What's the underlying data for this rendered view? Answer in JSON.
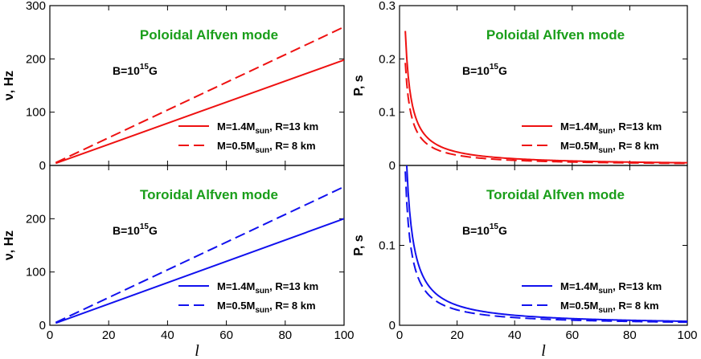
{
  "chart_data": [
    {
      "type": "line",
      "id": "poloidal-frequency",
      "title": "Poloidal Alfven mode",
      "annotation": {
        "text": "B=10",
        "sup": "15",
        "suffix": "G"
      },
      "xlabel": "l",
      "ylabel": "ν, Hz",
      "xlim": [
        0,
        100
      ],
      "ylim": [
        0,
        300
      ],
      "yticks": [
        0,
        100,
        200,
        300
      ],
      "xticks": [],
      "color": "#ee1111",
      "series": [
        {
          "name": "M=1.4M_sun, R=13 km",
          "legend": {
            "a": "M=1.4M",
            "sub": "sun",
            "b": ", R=13 km"
          },
          "dash": "solid",
          "x": [
            2,
            100
          ],
          "y": [
            3.96,
            198
          ]
        },
        {
          "name": "M=0.5M_sun, R=8 km",
          "legend": {
            "a": "M=0.5M",
            "sub": "sun",
            "b": ", R= 8  km"
          },
          "dash": "dashed",
          "x": [
            2,
            100
          ],
          "y": [
            5.2,
            260
          ]
        }
      ]
    },
    {
      "type": "line",
      "id": "toroidal-frequency",
      "title": "Toroidal Alfven mode",
      "annotation": {
        "text": "B=10",
        "sup": "15",
        "suffix": "G"
      },
      "xlabel": "l",
      "ylabel": "ν, Hz",
      "xlim": [
        0,
        100
      ],
      "ylim": [
        0,
        300
      ],
      "yticks": [
        0,
        100,
        200
      ],
      "xticks": [
        0,
        20,
        40,
        60,
        80,
        100
      ],
      "color": "#1111ee",
      "series": [
        {
          "name": "M=1.4M_sun, R=13 km",
          "legend": {
            "a": "M=1.4M",
            "sub": "sun",
            "b": ", R=13 km"
          },
          "dash": "solid",
          "x": [
            2,
            100
          ],
          "y": [
            4.0,
            200
          ]
        },
        {
          "name": "M=0.5M_sun, R=8 km",
          "legend": {
            "a": "M=0.5M",
            "sub": "sun",
            "b": ", R= 8  km"
          },
          "dash": "dashed",
          "x": [
            2,
            100
          ],
          "y": [
            5.2,
            260
          ]
        }
      ]
    },
    {
      "type": "line",
      "id": "poloidal-period",
      "title": "Poloidal Alfven mode",
      "annotation": {
        "text": "B=10",
        "sup": "15",
        "suffix": "G"
      },
      "xlabel": "l",
      "ylabel": "P, s",
      "xlim": [
        0,
        100
      ],
      "ylim": [
        0,
        0.3
      ],
      "yticks": [
        0,
        0.1,
        0.2,
        0.3
      ],
      "xticks": [],
      "color": "#ee1111",
      "series": [
        {
          "name": "M=1.4M_sun, R=13 km",
          "legend": {
            "a": "M=1.4M",
            "sub": "sun",
            "b": ", R=13 km"
          },
          "dash": "solid",
          "law": "inverse",
          "coef": 0.505,
          "xrange": [
            2,
            100
          ]
        },
        {
          "name": "M=0.5M_sun, R=8 km",
          "legend": {
            "a": "M=0.5M",
            "sub": "sun",
            "b": ", R= 8  km"
          },
          "dash": "dashed",
          "law": "inverse",
          "coef": 0.385,
          "xrange": [
            2,
            100
          ]
        }
      ]
    },
    {
      "type": "line",
      "id": "toroidal-period",
      "title": "Toroidal Alfven mode",
      "annotation": {
        "text": "B=10",
        "sup": "15",
        "suffix": "G"
      },
      "xlabel": "l",
      "ylabel": "P, s",
      "xlim": [
        0,
        100
      ],
      "ylim": [
        0,
        0.2
      ],
      "yticks": [
        0,
        0.1
      ],
      "xticks": [
        0,
        20,
        40,
        60,
        80,
        100
      ],
      "color": "#1111ee",
      "series": [
        {
          "name": "M=1.4M_sun, R=13 km",
          "legend": {
            "a": "M=1.4M",
            "sub": "sun",
            "b": ", R=13 km"
          },
          "dash": "solid",
          "law": "inverse",
          "coef": 0.5,
          "xrange": [
            2,
            100
          ]
        },
        {
          "name": "M=0.5M_sun, R=8 km",
          "legend": {
            "a": "M=0.5M",
            "sub": "sun",
            "b": ", R= 8  km"
          },
          "dash": "dashed",
          "law": "inverse",
          "coef": 0.385,
          "xrange": [
            2,
            100
          ]
        }
      ]
    }
  ]
}
